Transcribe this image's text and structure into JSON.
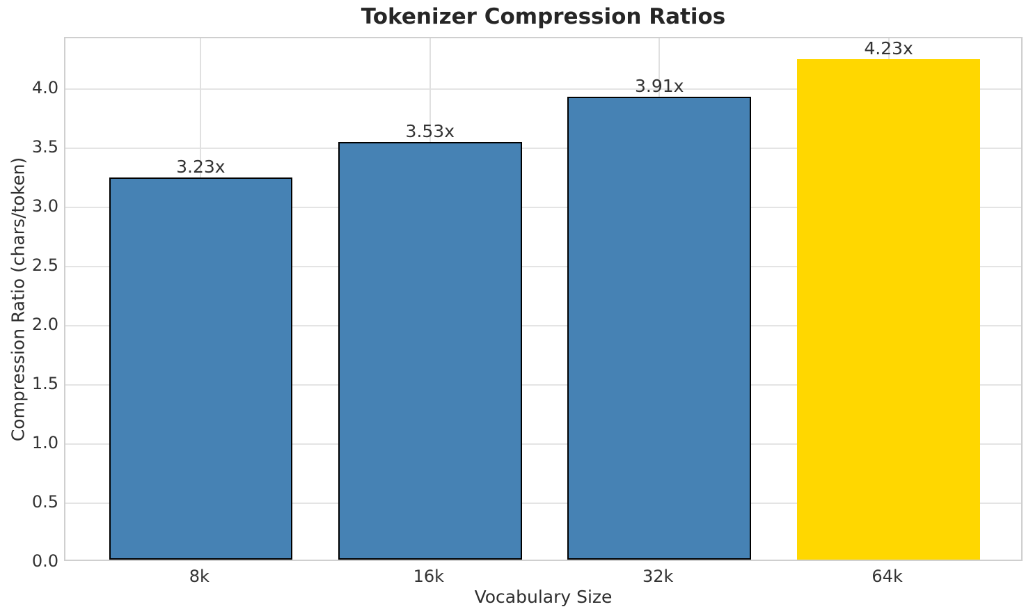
{
  "chart_data": {
    "type": "bar",
    "title": "Tokenizer Compression Ratios",
    "xlabel": "Vocabulary Size",
    "ylabel": "Compression Ratio (chars/token)",
    "categories": [
      "8k",
      "16k",
      "32k",
      "64k"
    ],
    "values": [
      3.23,
      3.53,
      3.91,
      4.23
    ],
    "bar_labels": [
      "3.23x",
      "3.53x",
      "3.91x",
      "4.23x"
    ],
    "bar_colors": [
      "#4682B4",
      "#4682B4",
      "#4682B4",
      "#FFD700"
    ],
    "bar_edge_colors": [
      "#000000",
      "#000000",
      "#000000",
      "none"
    ],
    "yticks": [
      "0.0",
      "0.5",
      "1.0",
      "1.5",
      "2.0",
      "2.5",
      "3.0",
      "3.5",
      "4.0"
    ],
    "ylim": [
      0,
      4.43
    ],
    "xlim": [
      -0.59,
      3.59
    ],
    "bar_width_units": 0.8,
    "grid": true,
    "legend": "none",
    "colors": {
      "grid": "#e4e4e4",
      "spine": "#cfcfcf",
      "text": "#333333",
      "title": "#262626",
      "background": "#ffffff",
      "bar_default": "#4682B4",
      "bar_highlight": "#FFD700"
    }
  }
}
